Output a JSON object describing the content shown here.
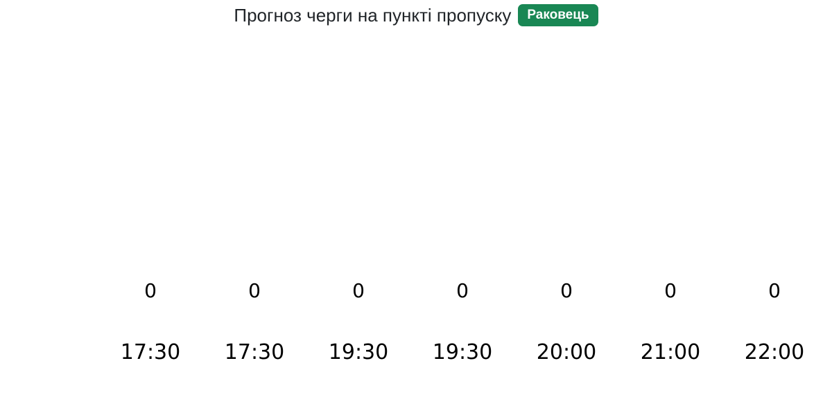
{
  "page": {
    "background": "#ffffff"
  },
  "header": {
    "title": "Прогноз черги на пункті пропуску",
    "badge": {
      "label": "Раковець",
      "background": "#198754",
      "text_color": "#ffffff"
    }
  },
  "chart_data": {
    "type": "bar",
    "title": "Прогноз черги на пункті пропуску — Раковець",
    "categories": [
      "17:30",
      "17:30",
      "19:30",
      "19:30",
      "20:00",
      "21:00",
      "22:00"
    ],
    "values": [
      0,
      0,
      0,
      0,
      0,
      0,
      0
    ],
    "xlabel": "",
    "ylabel": "",
    "ylim": [
      0,
      1
    ],
    "grid": false,
    "legend_position": "none",
    "data_labels_shown": true
  }
}
